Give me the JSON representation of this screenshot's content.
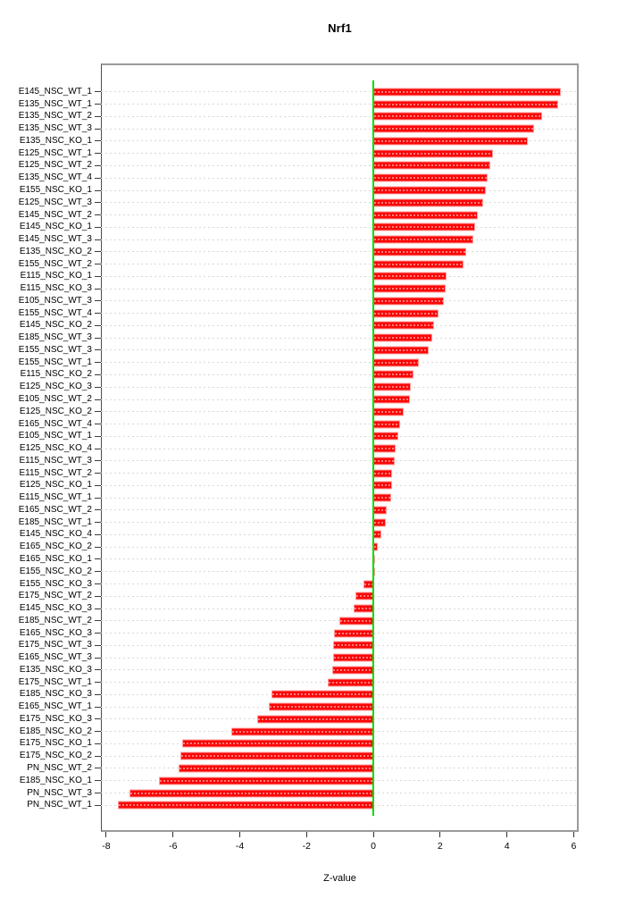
{
  "chart_data": {
    "type": "bar",
    "orientation": "horizontal",
    "title": "Nrf1",
    "xlabel": "Z-value",
    "xlim": [
      -8.16,
      6.15
    ],
    "xticks": [
      -8,
      -6,
      -4,
      -2,
      0,
      2,
      4,
      6
    ],
    "grid": "dotted horizontal line at each category",
    "legend": "none",
    "bar_color": "#fa0606",
    "bar_border_color": "#ff9d9d",
    "zero_line_color": "#00dc00",
    "frame_color": "#9a9a9a",
    "grid_color": "#d8d8d8",
    "categories": [
      "E145_NSC_WT_1",
      "E135_NSC_WT_1",
      "E135_NSC_WT_2",
      "E135_NSC_WT_3",
      "E135_NSC_KO_1",
      "E125_NSC_WT_1",
      "E125_NSC_WT_2",
      "E135_NSC_WT_4",
      "E155_NSC_KO_1",
      "E125_NSC_WT_3",
      "E145_NSC_WT_2",
      "E145_NSC_KO_1",
      "E145_NSC_WT_3",
      "E135_NSC_KO_2",
      "E155_NSC_WT_2",
      "E115_NSC_KO_1",
      "E115_NSC_KO_3",
      "E105_NSC_WT_3",
      "E155_NSC_WT_4",
      "E145_NSC_KO_2",
      "E185_NSC_WT_3",
      "E155_NSC_WT_3",
      "E155_NSC_WT_1",
      "E115_NSC_KO_2",
      "E125_NSC_KO_3",
      "E105_NSC_WT_2",
      "E125_NSC_KO_2",
      "E165_NSC_WT_4",
      "E105_NSC_WT_1",
      "E125_NSC_KO_4",
      "E115_NSC_WT_3",
      "E115_NSC_WT_2",
      "E125_NSC_KO_1",
      "E115_NSC_WT_1",
      "E165_NSC_WT_2",
      "E185_NSC_WT_1",
      "E145_NSC_KO_4",
      "E165_NSC_KO_2",
      "E165_NSC_KO_1",
      "E155_NSC_KO_2",
      "E155_NSC_KO_3",
      "E175_NSC_WT_2",
      "E145_NSC_KO_3",
      "E185_NSC_WT_2",
      "E165_NSC_KO_3",
      "E175_NSC_WT_3",
      "E165_NSC_WT_3",
      "E135_NSC_KO_3",
      "E175_NSC_WT_1",
      "E185_NSC_KO_3",
      "E165_NSC_WT_1",
      "E175_NSC_KO_3",
      "E185_NSC_KO_2",
      "E175_NSC_KO_1",
      "E175_NSC_KO_2",
      "PN_NSC_WT_2",
      "E185_NSC_KO_1",
      "PN_NSC_WT_3",
      "PN_NSC_WT_1"
    ],
    "values": [
      5.62,
      5.54,
      5.06,
      4.82,
      4.62,
      3.57,
      3.5,
      3.43,
      3.37,
      3.3,
      3.12,
      3.06,
      2.99,
      2.78,
      2.69,
      2.2,
      2.17,
      2.12,
      1.94,
      1.83,
      1.76,
      1.67,
      1.35,
      1.19,
      1.13,
      1.09,
      0.9,
      0.79,
      0.76,
      0.68,
      0.64,
      0.56,
      0.55,
      0.52,
      0.39,
      0.37,
      0.23,
      0.13,
      0.06,
      0.03,
      -0.29,
      -0.55,
      -0.6,
      -1.02,
      -1.18,
      -1.2,
      -1.21,
      -1.24,
      -1.37,
      -3.06,
      -3.12,
      -3.47,
      -4.25,
      -5.73,
      -5.77,
      -5.84,
      -6.41,
      -7.31,
      -7.64
    ]
  }
}
